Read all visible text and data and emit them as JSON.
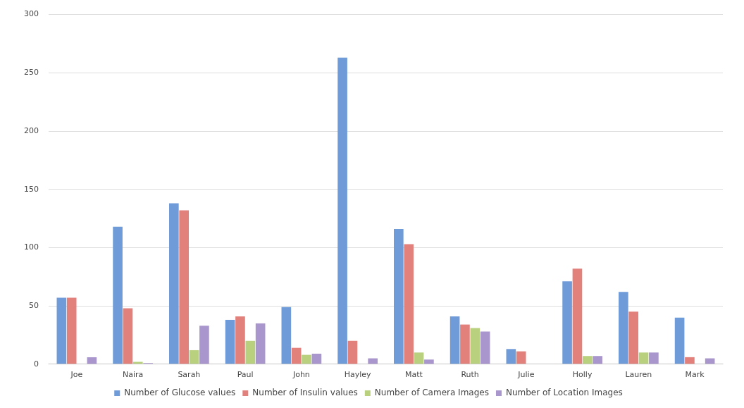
{
  "chart_data": {
    "type": "bar",
    "categories": [
      "Joe",
      "Naira",
      "Sarah",
      "Paul",
      "John",
      "Hayley",
      "Matt",
      "Ruth",
      "Julie",
      "Holly",
      "Lauren",
      "Mark"
    ],
    "series": [
      {
        "name": "Number of Glucose values",
        "color": "#6f9bd8",
        "values": [
          57,
          118,
          138,
          38,
          49,
          263,
          116,
          41,
          13,
          71,
          62,
          40
        ]
      },
      {
        "name": "Number of Insulin values",
        "color": "#e2807c",
        "values": [
          57,
          48,
          132,
          41,
          14,
          20,
          103,
          34,
          11,
          82,
          45,
          6
        ]
      },
      {
        "name": "Number of Camera Images",
        "color": "#b9d17e",
        "values": [
          0,
          2,
          12,
          20,
          8,
          0,
          10,
          31,
          0,
          7,
          10,
          0
        ]
      },
      {
        "name": "Number of Location Images",
        "color": "#a896cc",
        "values": [
          6,
          1,
          33,
          35,
          9,
          5,
          4,
          28,
          0,
          7,
          10,
          5
        ]
      }
    ],
    "ylim": [
      0,
      300
    ],
    "yticks": [
      0,
      50,
      100,
      150,
      200,
      250,
      300
    ],
    "grid": "y",
    "legend": "bottom"
  }
}
